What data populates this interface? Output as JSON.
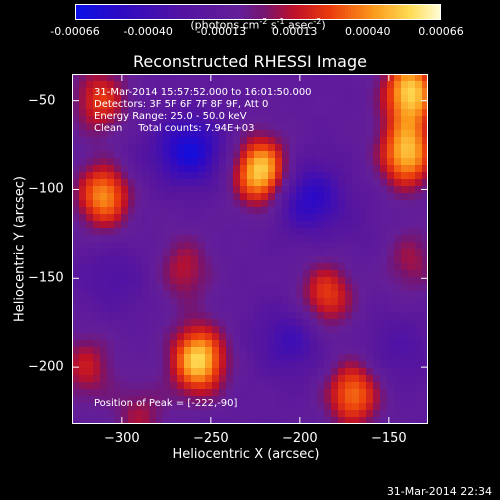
{
  "colors": {
    "background": "#000000",
    "text": "#ffffff"
  },
  "colorbar": {
    "ticks": [
      "-0.00066",
      "-0.00040",
      "-0.00013",
      "0.00013",
      "0.00040",
      "0.00066"
    ],
    "range": [
      -0.00066,
      0.00066
    ]
  },
  "units": {
    "base": "(photons cm",
    "cm_exp": "-2",
    "s": " s",
    "s_exp": "-1",
    "asec": " asec",
    "asec_exp": "-2",
    "close": ")"
  },
  "title": "Reconstructed RHESSI Image",
  "xlabel": "Heliocentric X (arcsec)",
  "ylabel": "Heliocentric Y (arcsec)",
  "info": {
    "line1": "31-Mar-2014 15:57:52.000 to 16:01:50.000",
    "line2": "Detectors: 3F 5F 6F 7F 8F 9F, Att 0",
    "line3": "Energy Range: 25.0 - 50.0 keV",
    "line4": "Clean     Total counts: 7.94E+03"
  },
  "peak_text": "Position of Peak = [-222,-90]",
  "timestamp": "31-Mar-2014 22:34",
  "chart_data": {
    "type": "heatmap",
    "title": "Reconstructed RHESSI Image",
    "xlabel": "Heliocentric X (arcsec)",
    "ylabel": "Heliocentric Y (arcsec)",
    "xlim": [
      -328,
      -128
    ],
    "ylim": [
      -232,
      -35
    ],
    "xticks": [
      -300,
      -250,
      -200,
      -150
    ],
    "yticks": [
      -50,
      -100,
      -150,
      -200
    ],
    "colorscale": "red-temperature with blue negatives",
    "vmin": -0.00066,
    "vmax": 0.00066,
    "peak": {
      "x": -222,
      "y": -90
    },
    "sources": [
      {
        "x": -222,
        "y": -90,
        "value": 0.00066
      },
      {
        "x": -138,
        "y": -45,
        "value": 0.00062
      },
      {
        "x": -140,
        "y": -80,
        "value": 0.00058
      },
      {
        "x": -310,
        "y": -103,
        "value": 0.00052
      },
      {
        "x": -257,
        "y": -196,
        "value": 0.00064
      },
      {
        "x": -170,
        "y": -215,
        "value": 0.00045
      },
      {
        "x": -312,
        "y": -50,
        "value": 0.00033
      },
      {
        "x": -185,
        "y": -160,
        "value": 0.00036
      },
      {
        "x": -265,
        "y": -145,
        "value": 0.00022
      },
      {
        "x": -320,
        "y": -200,
        "value": 0.00024
      },
      {
        "x": -290,
        "y": -228,
        "value": 0.00018
      },
      {
        "x": -138,
        "y": -140,
        "value": 0.00018
      }
    ],
    "negatives": [
      {
        "x": -262,
        "y": -78,
        "value": -0.0006
      },
      {
        "x": -195,
        "y": -105,
        "value": -0.00052
      },
      {
        "x": -305,
        "y": -150,
        "value": -0.0003
      },
      {
        "x": -205,
        "y": -185,
        "value": -0.0004
      },
      {
        "x": -145,
        "y": -190,
        "value": -0.0003
      },
      {
        "x": -300,
        "y": -85,
        "value": -0.0002
      },
      {
        "x": -165,
        "y": -125,
        "value": -0.00018
      }
    ]
  }
}
